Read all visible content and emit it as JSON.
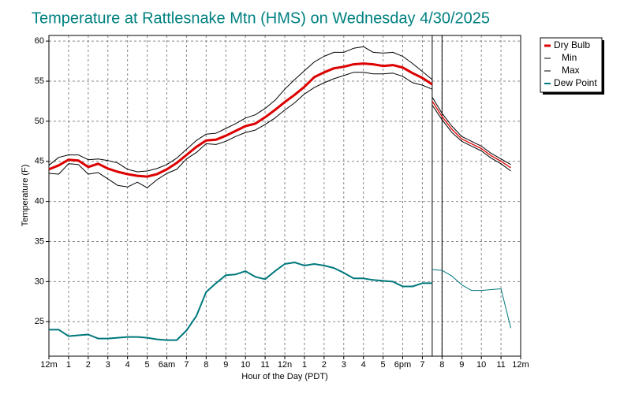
{
  "chart_data": {
    "type": "line",
    "title": "Temperature at Rattlesnake Mtn (HMS) on Wednesday 4/30/2025",
    "y_label": "Temperature (F)",
    "x_label": "Hour of the Day (PDT)",
    "xlim": [
      0,
      24
    ],
    "xticks": [
      {
        "value": 0,
        "label": "12m"
      },
      1,
      2,
      3,
      4,
      5,
      {
        "value": 6,
        "label": "6am"
      },
      7,
      8,
      9,
      10,
      11,
      {
        "value": 12,
        "label": "12n"
      },
      {
        "value": 13,
        "label": "1"
      },
      {
        "value": 14,
        "label": "2"
      },
      {
        "value": 15,
        "label": "3"
      },
      {
        "value": 16,
        "label": "4"
      },
      {
        "value": 17,
        "label": "5"
      },
      {
        "value": 18,
        "label": "6pm"
      },
      {
        "value": 19,
        "label": "7"
      },
      {
        "value": 20,
        "label": "8"
      },
      {
        "value": 21,
        "label": "9"
      },
      {
        "value": 22,
        "label": "10"
      },
      {
        "value": 23,
        "label": "11"
      },
      {
        "value": 24,
        "label": "12m"
      }
    ],
    "ylim": [
      20.7,
      60.7
    ],
    "yticks": [
      25,
      30,
      35,
      40,
      45,
      50,
      55,
      60
    ],
    "grid": true,
    "legend": "right",
    "forecast_from": 19.5,
    "vlines": [
      19.5,
      20
    ],
    "x": [
      0,
      0.5,
      1,
      1.5,
      2,
      2.5,
      3,
      3.5,
      4,
      4.5,
      5,
      5.5,
      6,
      6.5,
      7,
      7.5,
      8,
      8.5,
      9,
      9.5,
      10,
      10.5,
      11,
      11.5,
      12,
      12.5,
      13,
      13.5,
      14,
      14.5,
      15,
      15.5,
      16,
      16.5,
      17,
      17.5,
      18,
      18.5,
      19,
      19.5,
      19.5,
      19.5,
      20,
      20.5,
      21,
      21.5,
      22,
      22.5,
      23,
      23.5
    ],
    "series": [
      {
        "name": "Dry Bulb",
        "color": "#dd0000",
        "values": [
          44.0,
          44.5,
          45.2,
          45.1,
          44.3,
          44.7,
          44.1,
          43.7,
          43.4,
          43.2,
          43.1,
          43.4,
          44.0,
          44.8,
          45.8,
          46.8,
          47.6,
          47.7,
          48.2,
          48.8,
          49.4,
          49.7,
          50.5,
          51.4,
          52.4,
          53.3,
          54.3,
          55.5,
          56.1,
          56.6,
          56.8,
          57.1,
          57.2,
          57.1,
          56.9,
          57.0,
          56.7,
          56.0,
          55.4,
          54.6,
          null,
          52.5,
          50.6,
          49.0,
          47.8,
          47.2,
          46.6,
          45.7,
          45.0,
          44.2
        ]
      },
      {
        "name": "Min",
        "color": "#000000",
        "values": [
          43.5,
          43.4,
          44.7,
          44.6,
          43.4,
          43.6,
          42.8,
          42.0,
          41.8,
          42.4,
          41.7,
          42.7,
          43.5,
          44.0,
          45.3,
          46.1,
          47.2,
          47.1,
          47.5,
          48.1,
          48.6,
          48.9,
          49.6,
          50.4,
          51.4,
          52.3,
          53.4,
          54.2,
          54.8,
          55.3,
          55.7,
          56.1,
          56.1,
          55.9,
          55.9,
          56.0,
          55.6,
          54.8,
          54.5,
          54.0,
          null,
          52.0,
          50.2,
          48.6,
          47.5,
          46.9,
          46.3,
          45.4,
          44.7,
          43.8
        ]
      },
      {
        "name": "Max",
        "color": "#000000",
        "values": [
          44.5,
          45.5,
          45.8,
          45.8,
          45.2,
          45.3,
          45.1,
          44.8,
          44.0,
          43.7,
          43.8,
          44.1,
          44.6,
          45.4,
          46.5,
          47.6,
          48.4,
          48.5,
          49.1,
          49.7,
          50.4,
          50.8,
          51.6,
          52.6,
          54.0,
          55.2,
          56.3,
          57.4,
          58.1,
          58.6,
          58.6,
          59.1,
          59.3,
          58.6,
          58.5,
          58.6,
          58.1,
          57.2,
          56.2,
          55.2,
          null,
          53.0,
          51.0,
          49.4,
          48.1,
          47.5,
          46.9,
          46.0,
          45.3,
          44.6
        ]
      },
      {
        "name": "Dew Point",
        "color": "#00787c",
        "values": [
          24.0,
          24.0,
          23.2,
          23.3,
          23.4,
          22.9,
          22.9,
          23.0,
          23.1,
          23.1,
          23.0,
          22.8,
          22.7,
          22.7,
          23.9,
          25.7,
          28.7,
          29.8,
          30.8,
          30.9,
          31.3,
          30.6,
          30.3,
          31.3,
          32.2,
          32.4,
          32.0,
          32.2,
          32.0,
          31.7,
          31.1,
          30.4,
          30.4,
          30.2,
          30.1,
          30.0,
          29.4,
          29.4,
          29.8,
          29.8,
          null,
          31.5,
          31.4,
          30.7,
          29.6,
          28.9,
          28.9,
          29.0,
          29.1,
          24.2
        ]
      }
    ]
  }
}
